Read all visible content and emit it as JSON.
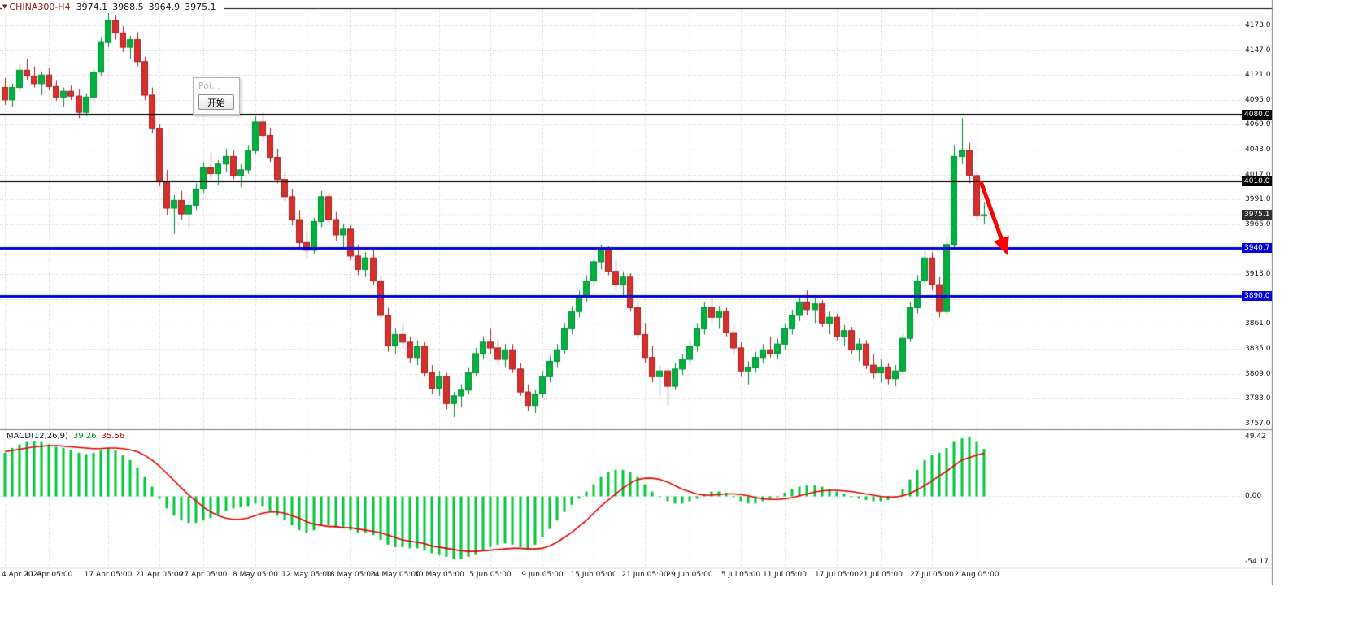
{
  "header": {
    "symbol": "CHINA300-H4",
    "open": "3974.1",
    "high": "3988.5",
    "low": "3964.9",
    "close": "3975.1"
  },
  "popup": {
    "title": "Poi...",
    "button": "开始"
  },
  "macd": {
    "label": "MACD(12,26,9)",
    "value": "39.26",
    "signal": "35.56"
  },
  "price_axis": {
    "ticks": [
      {
        "label": "4173.0",
        "price": 4173.0
      },
      {
        "label": "4147.0",
        "price": 4147.0
      },
      {
        "label": "4121.0",
        "price": 4121.0
      },
      {
        "label": "4095.0",
        "price": 4095.0
      },
      {
        "label": "4069.0",
        "price": 4069.0
      },
      {
        "label": "4043.0",
        "price": 4043.0
      },
      {
        "label": "4017.0",
        "price": 4017.0
      },
      {
        "label": "3991.0",
        "price": 3991.0
      },
      {
        "label": "3965.0",
        "price": 3965.0
      },
      {
        "label": "3913.0",
        "price": 3913.0
      },
      {
        "label": "3861.0",
        "price": 3861.0
      },
      {
        "label": "3835.0",
        "price": 3835.0
      },
      {
        "label": "3809.0",
        "price": 3809.0
      },
      {
        "label": "3783.0",
        "price": 3783.0
      },
      {
        "label": "3757.0",
        "price": 3757.0
      }
    ],
    "badges": [
      {
        "label": "4080.0",
        "price": 4080.0,
        "bg": "#000000"
      },
      {
        "label": "4010.0",
        "price": 4010.0,
        "bg": "#000000"
      },
      {
        "label": "3975.1",
        "price": 3975.1,
        "bg": "#2f2f2f"
      },
      {
        "label": "3940.7",
        "price": 3940.7,
        "bg": "#0000d8"
      },
      {
        "label": "3890.0",
        "price": 3890.0,
        "bg": "#0000d8"
      }
    ]
  },
  "chart_data": {
    "type": "candlestick",
    "symbol": "CHINA300-H4",
    "timeframe": "H4",
    "title": "CHINA300-H4 3974.1 3988.5 3964.9 3975.1",
    "ylim_main": [
      3751,
      4191
    ],
    "grid": {
      "price_max": 4173.0,
      "price_step": 26.0,
      "price_lines": 17
    },
    "last_price": 3975.1,
    "colors": {
      "up": "#00b140",
      "up_border": "#008a32",
      "down": "#d6302c",
      "down_border": "#a02020",
      "grid": "#cdcdcd",
      "line_black": "#000000",
      "line_blue": "#0000d8",
      "last_price_line": "#b0b0b0",
      "macd_hist": "#00c83e",
      "macd_signal": "#e60000",
      "arrow": "#ff0000"
    },
    "horizontal_lines": [
      {
        "price": 4080.0,
        "color": "#000000",
        "width": 2
      },
      {
        "price": 4010.0,
        "color": "#000000",
        "width": 2
      },
      {
        "price": 3940.7,
        "color": "#0000d8",
        "width": 3
      },
      {
        "price": 3890.0,
        "color": "#0000d8",
        "width": 3
      }
    ],
    "candles": [
      [
        4108,
        4118,
        4090,
        4095
      ],
      [
        4095,
        4112,
        4088,
        4108
      ],
      [
        4108,
        4132,
        4104,
        4126
      ],
      [
        4126,
        4138,
        4116,
        4120
      ],
      [
        4120,
        4130,
        4108,
        4112
      ],
      [
        4112,
        4125,
        4100,
        4121
      ],
      [
        4121,
        4128,
        4105,
        4109
      ],
      [
        4109,
        4115,
        4094,
        4098
      ],
      [
        4098,
        4108,
        4088,
        4104
      ],
      [
        4104,
        4110,
        4095,
        4099
      ],
      [
        4099,
        4106,
        4076,
        4082
      ],
      [
        4082,
        4102,
        4078,
        4098
      ],
      [
        4098,
        4128,
        4094,
        4124
      ],
      [
        4124,
        4160,
        4120,
        4155
      ],
      [
        4155,
        4186,
        4150,
        4178
      ],
      [
        4178,
        4183,
        4158,
        4165
      ],
      [
        4165,
        4172,
        4145,
        4150
      ],
      [
        4150,
        4162,
        4138,
        4158
      ],
      [
        4158,
        4166,
        4130,
        4135
      ],
      [
        4135,
        4140,
        4095,
        4100
      ],
      [
        4100,
        4108,
        4060,
        4065
      ],
      [
        4065,
        4070,
        4005,
        4010
      ],
      [
        4010,
        4022,
        3975,
        3982
      ],
      [
        3982,
        3996,
        3955,
        3990
      ],
      [
        3990,
        4000,
        3970,
        3976
      ],
      [
        3976,
        3990,
        3962,
        3985
      ],
      [
        3985,
        4008,
        3980,
        4002
      ],
      [
        4002,
        4030,
        3998,
        4024
      ],
      [
        4024,
        4040,
        4012,
        4018
      ],
      [
        4018,
        4032,
        4006,
        4028
      ],
      [
        4028,
        4044,
        4020,
        4036
      ],
      [
        4036,
        4042,
        4012,
        4016
      ],
      [
        4016,
        4028,
        4004,
        4022
      ],
      [
        4022,
        4048,
        4018,
        4042
      ],
      [
        4042,
        4078,
        4038,
        4072
      ],
      [
        4072,
        4082,
        4052,
        4058
      ],
      [
        4058,
        4066,
        4030,
        4035
      ],
      [
        4035,
        4044,
        4008,
        4012
      ],
      [
        4012,
        4020,
        3988,
        3994
      ],
      [
        3994,
        4002,
        3964,
        3970
      ],
      [
        3970,
        3980,
        3940,
        3946
      ],
      [
        3946,
        3958,
        3930,
        3938
      ],
      [
        3938,
        3972,
        3934,
        3968
      ],
      [
        3968,
        4000,
        3962,
        3994
      ],
      [
        3994,
        3998,
        3966,
        3970
      ],
      [
        3970,
        3978,
        3948,
        3954
      ],
      [
        3954,
        3966,
        3940,
        3960
      ],
      [
        3960,
        3964,
        3928,
        3932
      ],
      [
        3932,
        3944,
        3912,
        3918
      ],
      [
        3918,
        3936,
        3910,
        3930
      ],
      [
        3930,
        3938,
        3902,
        3906
      ],
      [
        3906,
        3912,
        3866,
        3870
      ],
      [
        3870,
        3878,
        3832,
        3838
      ],
      [
        3838,
        3856,
        3830,
        3850
      ],
      [
        3850,
        3862,
        3836,
        3842
      ],
      [
        3842,
        3848,
        3820,
        3826
      ],
      [
        3826,
        3844,
        3818,
        3838
      ],
      [
        3838,
        3842,
        3806,
        3810
      ],
      [
        3810,
        3818,
        3788,
        3794
      ],
      [
        3794,
        3812,
        3786,
        3806
      ],
      [
        3806,
        3810,
        3772,
        3778
      ],
      [
        3778,
        3790,
        3764,
        3786
      ],
      [
        3786,
        3798,
        3774,
        3792
      ],
      [
        3792,
        3816,
        3788,
        3810
      ],
      [
        3810,
        3836,
        3806,
        3830
      ],
      [
        3830,
        3848,
        3824,
        3842
      ],
      [
        3842,
        3856,
        3830,
        3836
      ],
      [
        3836,
        3846,
        3818,
        3824
      ],
      [
        3824,
        3840,
        3816,
        3834
      ],
      [
        3834,
        3840,
        3810,
        3814
      ],
      [
        3814,
        3820,
        3786,
        3790
      ],
      [
        3790,
        3798,
        3770,
        3776
      ],
      [
        3776,
        3792,
        3768,
        3788
      ],
      [
        3788,
        3812,
        3784,
        3806
      ],
      [
        3806,
        3828,
        3800,
        3822
      ],
      [
        3822,
        3840,
        3816,
        3834
      ],
      [
        3834,
        3862,
        3830,
        3856
      ],
      [
        3856,
        3880,
        3850,
        3874
      ],
      [
        3874,
        3896,
        3868,
        3890
      ],
      [
        3890,
        3912,
        3884,
        3906
      ],
      [
        3906,
        3932,
        3900,
        3926
      ],
      [
        3926,
        3944,
        3918,
        3938
      ],
      [
        3938,
        3942,
        3912,
        3916
      ],
      [
        3916,
        3928,
        3896,
        3902
      ],
      [
        3902,
        3916,
        3890,
        3910
      ],
      [
        3910,
        3914,
        3874,
        3878
      ],
      [
        3878,
        3884,
        3846,
        3850
      ],
      [
        3850,
        3862,
        3820,
        3826
      ],
      [
        3826,
        3838,
        3800,
        3806
      ],
      [
        3806,
        3818,
        3786,
        3812
      ],
      [
        3812,
        3816,
        3776,
        3796
      ],
      [
        3796,
        3820,
        3792,
        3814
      ],
      [
        3814,
        3830,
        3808,
        3824
      ],
      [
        3824,
        3844,
        3818,
        3838
      ],
      [
        3838,
        3862,
        3832,
        3856
      ],
      [
        3856,
        3884,
        3850,
        3878
      ],
      [
        3878,
        3888,
        3862,
        3868
      ],
      [
        3868,
        3880,
        3856,
        3874
      ],
      [
        3874,
        3878,
        3848,
        3852
      ],
      [
        3852,
        3860,
        3830,
        3836
      ],
      [
        3836,
        3842,
        3806,
        3812
      ],
      [
        3812,
        3822,
        3798,
        3816
      ],
      [
        3816,
        3832,
        3810,
        3826
      ],
      [
        3826,
        3840,
        3820,
        3834
      ],
      [
        3834,
        3848,
        3826,
        3830
      ],
      [
        3830,
        3846,
        3824,
        3840
      ],
      [
        3840,
        3862,
        3834,
        3856
      ],
      [
        3856,
        3876,
        3850,
        3870
      ],
      [
        3870,
        3890,
        3864,
        3884
      ],
      [
        3884,
        3896,
        3870,
        3876
      ],
      [
        3876,
        3888,
        3862,
        3882
      ],
      [
        3882,
        3886,
        3858,
        3862
      ],
      [
        3862,
        3874,
        3850,
        3868
      ],
      [
        3868,
        3872,
        3844,
        3848
      ],
      [
        3848,
        3860,
        3838,
        3854
      ],
      [
        3854,
        3858,
        3830,
        3834
      ],
      [
        3834,
        3846,
        3822,
        3840
      ],
      [
        3840,
        3844,
        3814,
        3818
      ],
      [
        3818,
        3830,
        3804,
        3810
      ],
      [
        3810,
        3824,
        3800,
        3816
      ],
      [
        3816,
        3820,
        3798,
        3804
      ],
      [
        3804,
        3818,
        3796,
        3812
      ],
      [
        3812,
        3852,
        3808,
        3846
      ],
      [
        3846,
        3884,
        3842,
        3878
      ],
      [
        3878,
        3912,
        3872,
        3906
      ],
      [
        3906,
        3938,
        3900,
        3930
      ],
      [
        3930,
        3936,
        3896,
        3902
      ],
      [
        3902,
        3910,
        3868,
        3874
      ],
      [
        3874,
        3950,
        3870,
        3944
      ],
      [
        3944,
        4048,
        3940,
        4036
      ],
      [
        4036,
        4076,
        4028,
        4042
      ],
      [
        4042,
        4050,
        4008,
        4016
      ],
      [
        4016,
        4020,
        3970,
        3974
      ],
      [
        3974.1,
        3988.5,
        3964.9,
        3975.1
      ]
    ],
    "macd": {
      "axis_labels": [
        {
          "label": "49.42",
          "v": 49.42
        },
        {
          "label": "0.00",
          "v": 0
        },
        {
          "label": "-54.17",
          "v": -54.17
        }
      ],
      "histogram": [
        36,
        40,
        43,
        45,
        46,
        45,
        43,
        41,
        40,
        38,
        36,
        35,
        36,
        38,
        40,
        38,
        34,
        30,
        24,
        16,
        8,
        -2,
        -10,
        -16,
        -20,
        -22,
        -22,
        -20,
        -18,
        -15,
        -12,
        -10,
        -9,
        -8,
        -6,
        -8,
        -12,
        -16,
        -20,
        -24,
        -28,
        -30,
        -28,
        -24,
        -24,
        -26,
        -26,
        -28,
        -30,
        -30,
        -32,
        -36,
        -40,
        -42,
        -42,
        -43,
        -43,
        -45,
        -47,
        -48,
        -50,
        -52,
        -52,
        -50,
        -48,
        -45,
        -42,
        -40,
        -39,
        -40,
        -42,
        -44,
        -40,
        -34,
        -27,
        -20,
        -13,
        -7,
        -2,
        4,
        10,
        16,
        20,
        22,
        22,
        20,
        16,
        10,
        4,
        0,
        -4,
        -6,
        -6,
        -4,
        -2,
        2,
        4,
        4,
        3,
        0,
        -4,
        -6,
        -6,
        -4,
        -2,
        0,
        3,
        6,
        8,
        9,
        9,
        8,
        6,
        4,
        2,
        0,
        -2,
        -3,
        -4,
        -4,
        -3,
        0,
        6,
        14,
        22,
        30,
        34,
        36,
        40,
        45,
        48,
        49.42,
        45,
        39.26
      ],
      "signal": [
        37,
        38,
        39,
        40,
        41,
        41.5,
        42,
        42,
        41.5,
        41,
        40.5,
        40,
        39.5,
        39.5,
        40,
        40,
        39.5,
        38.5,
        37,
        34,
        30,
        25,
        19,
        13,
        7,
        1,
        -4,
        -9,
        -13,
        -16,
        -18,
        -19,
        -19,
        -18,
        -16,
        -14,
        -13,
        -13,
        -14,
        -16,
        -18,
        -21,
        -23,
        -24,
        -25,
        -25,
        -26,
        -26,
        -27,
        -28,
        -29,
        -30,
        -32,
        -34,
        -36,
        -37,
        -38,
        -39,
        -41,
        -42,
        -43,
        -44,
        -45,
        -45.5,
        -45.5,
        -45,
        -44.5,
        -44,
        -43.5,
        -43,
        -43,
        -43.5,
        -43.5,
        -43,
        -41,
        -38,
        -34,
        -30,
        -25,
        -20,
        -14,
        -8,
        -3,
        2,
        7,
        11,
        14,
        15,
        15,
        14,
        12,
        9,
        6,
        4,
        2,
        1,
        1,
        1.5,
        2,
        2,
        1.5,
        0.5,
        -1,
        -2,
        -2.5,
        -2.5,
        -2,
        -1,
        0.5,
        2,
        3.5,
        4.5,
        5,
        5,
        4.5,
        4,
        3,
        2,
        1,
        0,
        -0.5,
        -0.5,
        0.5,
        2.5,
        5.5,
        9,
        13,
        17,
        21,
        25.5,
        30,
        32,
        34,
        35.56
      ]
    },
    "time_labels": [
      {
        "text": "4 Apr 2023",
        "i": 0
      },
      {
        "text": "11 Apr 05:00",
        "i": 6
      },
      {
        "text": "17 Apr 05:00",
        "i": 14
      },
      {
        "text": "21 Apr 05:00",
        "i": 21
      },
      {
        "text": "27 Apr 05:00",
        "i": 27
      },
      {
        "text": "8 May 05:00",
        "i": 34
      },
      {
        "text": "12 May 05:00",
        "i": 41
      },
      {
        "text": "18 May 05:00",
        "i": 47
      },
      {
        "text": "24 May 05:00",
        "i": 53
      },
      {
        "text": "30 May 05:00",
        "i": 59
      },
      {
        "text": "5 Jun 05:00",
        "i": 66
      },
      {
        "text": "9 Jun 05:00",
        "i": 73
      },
      {
        "text": "15 Jun 05:00",
        "i": 80
      },
      {
        "text": "21 Jun 05:00",
        "i": 87
      },
      {
        "text": "29 Jun 05:00",
        "i": 93
      },
      {
        "text": "5 Jul 05:00",
        "i": 100
      },
      {
        "text": "11 Jul 05:00",
        "i": 106
      },
      {
        "text": "17 Jul 05:00",
        "i": 113
      },
      {
        "text": "21 Jul 05:00",
        "i": 119
      },
      {
        "text": "27 Jul 05:00",
        "i": 126
      },
      {
        "text": "2 Aug 05:00",
        "i": 132
      }
    ]
  }
}
